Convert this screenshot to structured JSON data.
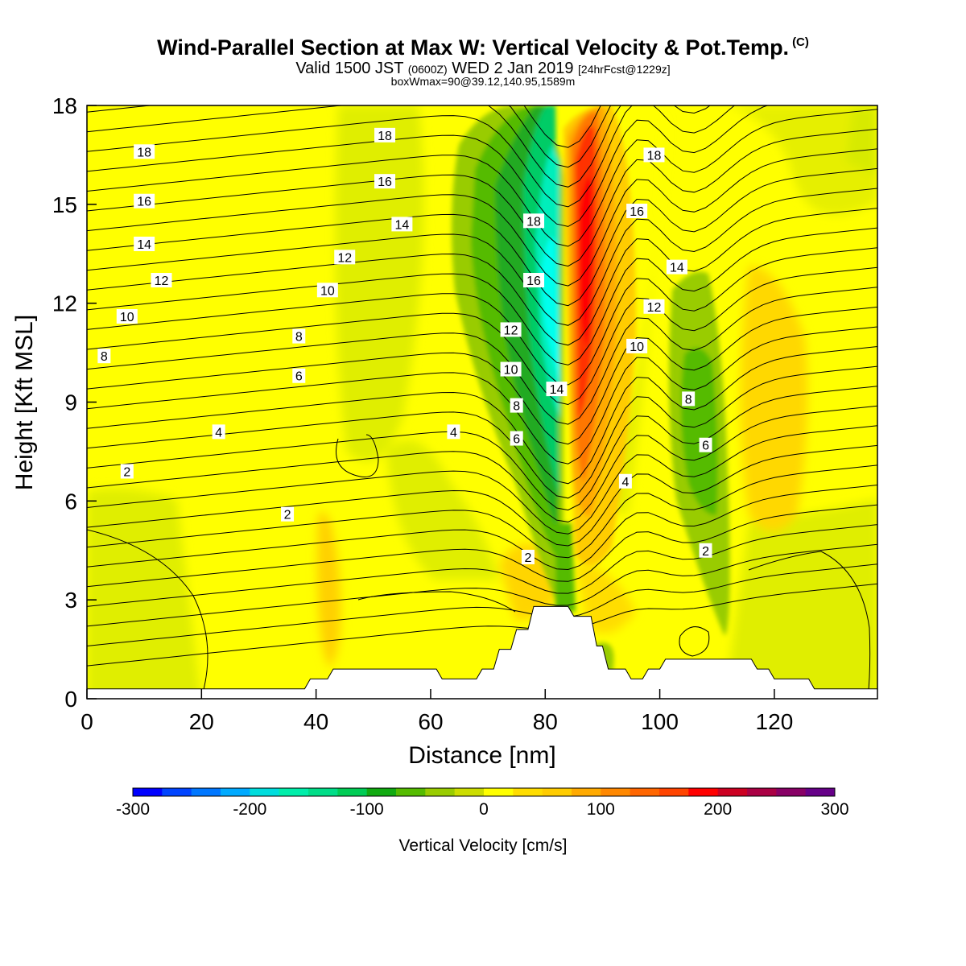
{
  "title": {
    "main": "Wind-Parallel Section at Max W: Vertical Velocity & Pot.Temp.",
    "copyright": "(C)",
    "valid_prefix": "Valid 1500 JST",
    "valid_zulu": "(0600Z)",
    "valid_date": "WED 2 Jan 2019",
    "forecast": "[24hrFcst@1229z]",
    "box_info": "boxWmax=90@39.12,140.95,1589m"
  },
  "chart_data": {
    "type": "heatmap",
    "xlabel": "Distance [nm]",
    "ylabel": "Height [Kft MSL]",
    "xlim": [
      0,
      138
    ],
    "ylim": [
      0,
      18
    ],
    "x_ticks": [
      "0",
      "20",
      "40",
      "60",
      "80",
      "100",
      "120"
    ],
    "y_ticks": [
      "0",
      "3",
      "6",
      "9",
      "12",
      "15",
      "18"
    ],
    "colorbar": {
      "label": "Vertical Velocity [cm/s]",
      "range": [
        -300,
        300
      ],
      "tick_labels": [
        "-300",
        "-200",
        "-100",
        "0",
        "100",
        "200",
        "300"
      ],
      "colors": [
        "#0000ff",
        "#0044ff",
        "#0077ff",
        "#00aaff",
        "#00dddd",
        "#00eeaa",
        "#00dd88",
        "#00cc55",
        "#11aa11",
        "#55bb00",
        "#99cc00",
        "#ccdd00",
        "#ffff00",
        "#ffdd00",
        "#ffcc00",
        "#ffaa00",
        "#ff8800",
        "#ff6600",
        "#ff4400",
        "#ff0000",
        "#cc0022",
        "#aa0044",
        "#880066",
        "#660088"
      ]
    },
    "velocity_features": [
      {
        "type": "downdraft",
        "x_center": 80,
        "y_range": [
          3,
          18
        ],
        "peak_cm_s": -180
      },
      {
        "type": "updraft",
        "x_center": 87,
        "y_range": [
          4,
          18
        ],
        "peak_cm_s": 210
      },
      {
        "type": "downdraft",
        "x_center": 108,
        "y_range": [
          2,
          13
        ],
        "peak_cm_s": -110
      },
      {
        "type": "updraft",
        "x_center": 120,
        "y_range": [
          5,
          12
        ],
        "peak_cm_s": 40
      }
    ],
    "contour_labels": [
      {
        "text": "18",
        "x": 10,
        "y": 16.6
      },
      {
        "text": "16",
        "x": 10,
        "y": 15.1
      },
      {
        "text": "14",
        "x": 10,
        "y": 13.8
      },
      {
        "text": "12",
        "x": 13,
        "y": 12.7
      },
      {
        "text": "10",
        "x": 7,
        "y": 11.6
      },
      {
        "text": "8",
        "x": 3,
        "y": 10.4
      },
      {
        "text": "2",
        "x": 7,
        "y": 6.9
      },
      {
        "text": "4",
        "x": 23,
        "y": 8.1
      },
      {
        "text": "2",
        "x": 35,
        "y": 5.6
      },
      {
        "text": "6",
        "x": 37,
        "y": 9.8
      },
      {
        "text": "8",
        "x": 37,
        "y": 11.0
      },
      {
        "text": "10",
        "x": 42,
        "y": 12.4
      },
      {
        "text": "12",
        "x": 45,
        "y": 13.4
      },
      {
        "text": "14",
        "x": 55,
        "y": 14.4
      },
      {
        "text": "16",
        "x": 52,
        "y": 15.7
      },
      {
        "text": "18",
        "x": 52,
        "y": 17.1
      },
      {
        "text": "4",
        "x": 64,
        "y": 8.1
      },
      {
        "text": "2",
        "x": 77,
        "y": 4.3
      },
      {
        "text": "6",
        "x": 75,
        "y": 7.9
      },
      {
        "text": "8",
        "x": 75,
        "y": 8.9
      },
      {
        "text": "10",
        "x": 74,
        "y": 10.0
      },
      {
        "text": "12",
        "x": 74,
        "y": 11.2
      },
      {
        "text": "16",
        "x": 78,
        "y": 12.7
      },
      {
        "text": "18",
        "x": 78,
        "y": 14.5
      },
      {
        "text": "14",
        "x": 82,
        "y": 9.4
      },
      {
        "text": "4",
        "x": 94,
        "y": 6.6
      },
      {
        "text": "10",
        "x": 96,
        "y": 10.7
      },
      {
        "text": "12",
        "x": 99,
        "y": 11.9
      },
      {
        "text": "14",
        "x": 103,
        "y": 13.1
      },
      {
        "text": "16",
        "x": 96,
        "y": 14.8
      },
      {
        "text": "18",
        "x": 99,
        "y": 16.5
      },
      {
        "text": "8",
        "x": 105,
        "y": 9.1
      },
      {
        "text": "6",
        "x": 108,
        "y": 7.7
      },
      {
        "text": "2",
        "x": 108,
        "y": 4.5
      }
    ],
    "terrain_kft": [
      [
        0,
        0.3
      ],
      [
        38,
        0.3
      ],
      [
        39,
        0.6
      ],
      [
        42,
        0.6
      ],
      [
        43,
        0.9
      ],
      [
        61,
        0.9
      ],
      [
        62,
        0.6
      ],
      [
        68,
        0.6
      ],
      [
        69,
        0.9
      ],
      [
        71,
        0.9
      ],
      [
        72,
        1.5
      ],
      [
        74,
        1.5
      ],
      [
        75,
        2.1
      ],
      [
        77,
        2.1
      ],
      [
        78,
        2.8
      ],
      [
        84,
        2.8
      ],
      [
        85,
        2.5
      ],
      [
        88,
        2.5
      ],
      [
        89,
        1.6
      ],
      [
        90,
        1.6
      ],
      [
        91,
        0.9
      ],
      [
        94,
        0.9
      ],
      [
        95,
        0.6
      ],
      [
        97,
        0.6
      ],
      [
        98,
        0.9
      ],
      [
        100,
        0.9
      ],
      [
        101,
        1.2
      ],
      [
        116,
        1.2
      ],
      [
        117,
        0.9
      ],
      [
        119,
        0.9
      ],
      [
        120,
        0.6
      ],
      [
        126,
        0.6
      ],
      [
        127,
        0.3
      ],
      [
        138,
        0.3
      ]
    ]
  }
}
